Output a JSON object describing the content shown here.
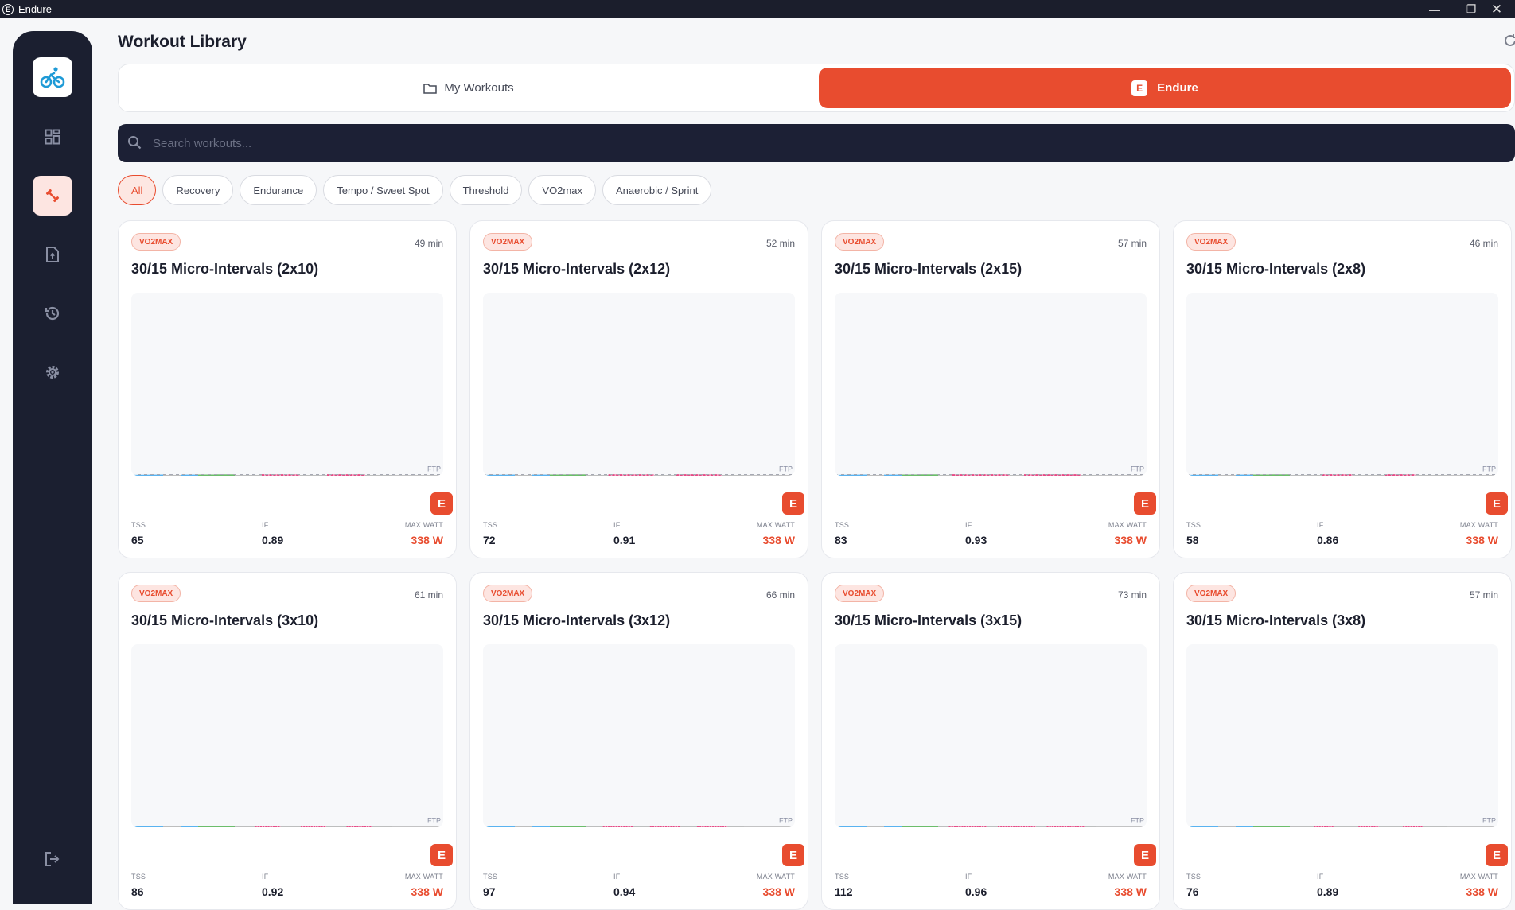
{
  "window": {
    "title": "Endure"
  },
  "page": {
    "title": "Workout Library"
  },
  "tabs": {
    "my_workouts": "My Workouts",
    "endure": "Endure",
    "endure_badge": "E"
  },
  "search": {
    "placeholder": "Search workouts..."
  },
  "filters": [
    "All",
    "Recovery",
    "Endurance",
    "Tempo / Sweet Spot",
    "Threshold",
    "VO2max",
    "Anaerobic / Sprint"
  ],
  "labels": {
    "tss": "TSS",
    "if": "IF",
    "max_watt": "MAX WATT",
    "ftp": "FTP",
    "e_badge": "E"
  },
  "colors": {
    "accent": "#e84c2f",
    "sidebar": "#1b1f30",
    "vo2": "#e64c87",
    "endurance": "#5ab3f0",
    "tempo": "#6cbd6b",
    "recovery": "#ababab"
  },
  "workouts": [
    {
      "category": "VO2MAX",
      "duration": "49 min",
      "title": "30/15 Micro-Intervals (2x10)",
      "tss": "65",
      "if": "0.89",
      "max_watt": "338 W",
      "sets": 2,
      "reps": 10
    },
    {
      "category": "VO2MAX",
      "duration": "52 min",
      "title": "30/15 Micro-Intervals (2x12)",
      "tss": "72",
      "if": "0.91",
      "max_watt": "338 W",
      "sets": 2,
      "reps": 12
    },
    {
      "category": "VO2MAX",
      "duration": "57 min",
      "title": "30/15 Micro-Intervals (2x15)",
      "tss": "83",
      "if": "0.93",
      "max_watt": "338 W",
      "sets": 2,
      "reps": 15
    },
    {
      "category": "VO2MAX",
      "duration": "46 min",
      "title": "30/15 Micro-Intervals (2x8)",
      "tss": "58",
      "if": "0.86",
      "max_watt": "338 W",
      "sets": 2,
      "reps": 8
    },
    {
      "category": "VO2MAX",
      "duration": "61 min",
      "title": "30/15 Micro-Intervals (3x10)",
      "tss": "86",
      "if": "0.92",
      "max_watt": "338 W",
      "sets": 3,
      "reps": 10
    },
    {
      "category": "VO2MAX",
      "duration": "66 min",
      "title": "30/15 Micro-Intervals (3x12)",
      "tss": "97",
      "if": "0.94",
      "max_watt": "338 W",
      "sets": 3,
      "reps": 12
    },
    {
      "category": "VO2MAX",
      "duration": "73 min",
      "title": "30/15 Micro-Intervals (3x15)",
      "tss": "112",
      "if": "0.96",
      "max_watt": "338 W",
      "sets": 3,
      "reps": 15
    },
    {
      "category": "VO2MAX",
      "duration": "57 min",
      "title": "30/15 Micro-Intervals (3x8)",
      "tss": "76",
      "if": "0.89",
      "max_watt": "338 W",
      "sets": 3,
      "reps": 8
    }
  ]
}
